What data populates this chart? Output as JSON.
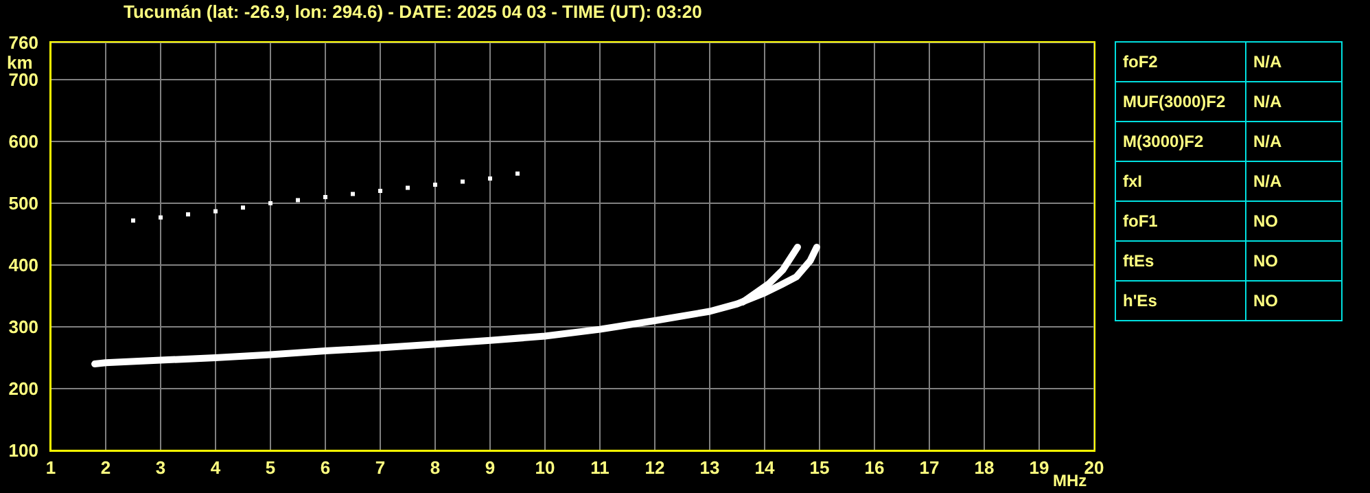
{
  "chart_data": [
    {
      "type": "line",
      "title": "Tucumán (lat: -26.9, lon: 294.6) - DATE: 2025 04 03 - TIME (UT): 03:20",
      "xlabel": "MHz",
      "ylabel": "km",
      "xlim": [
        1,
        20
      ],
      "xticks": [
        1,
        2,
        3,
        4,
        5,
        6,
        7,
        8,
        9,
        10,
        11,
        12,
        13,
        14,
        15,
        16,
        17,
        18,
        19,
        20
      ],
      "ylim": [
        100,
        760
      ],
      "yticks": [
        100,
        200,
        300,
        400,
        500,
        600,
        700,
        760
      ],
      "grid": true,
      "series": [
        {
          "color": "#ffffff",
          "x": [
            1.8,
            2,
            3,
            4,
            5,
            6,
            7,
            8,
            9,
            10,
            11,
            12,
            13,
            13.5,
            14,
            14.3,
            14.58,
            14.83,
            14.95
          ],
          "values": [
            240,
            242,
            246,
            250,
            255,
            261,
            266,
            272,
            278,
            285,
            296,
            310,
            325,
            337,
            355,
            368,
            381,
            407,
            429
          ]
        },
        {
          "color": "#ffffff",
          "x": [
            13.6,
            14.08,
            14.33,
            14.6
          ],
          "values": [
            340,
            370,
            392,
            429
          ]
        },
        {
          "type": "scatter",
          "marker": "square",
          "color": "#ffffff",
          "x": [
            2.5,
            3,
            3.5,
            4,
            4.5,
            5,
            5.5,
            6,
            6.5,
            7,
            7.5,
            8,
            8.5,
            9,
            9.5
          ],
          "values": [
            472,
            477,
            482,
            487,
            493,
            500,
            505,
            510,
            515,
            520,
            525,
            530,
            535,
            540,
            548
          ]
        }
      ]
    },
    {
      "type": "other",
      "annotations": [
        "foF2",
        "N/A",
        "MUF(3000)F2",
        "N/A",
        "M(3000)F2",
        "N/A",
        "fxI",
        "N/A",
        "foF1",
        "NO",
        "ftEs",
        "NO",
        "h'Es",
        "NO"
      ]
    }
  ]
}
